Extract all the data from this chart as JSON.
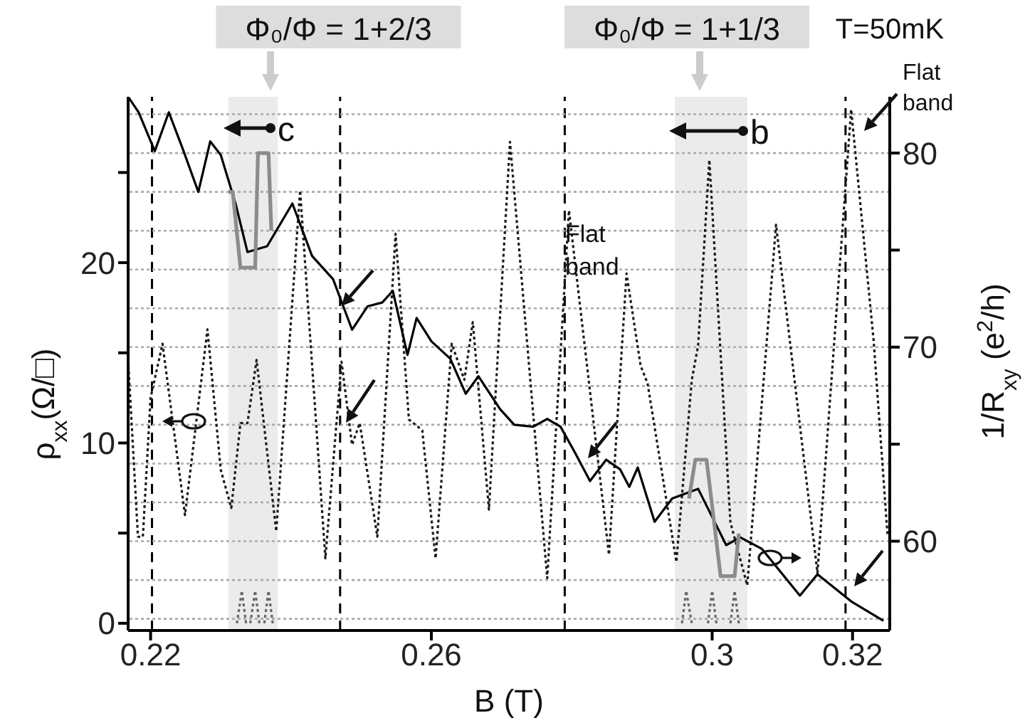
{
  "chart_data": {
    "type": "line",
    "xlabel": "B (T)",
    "ylabel": "ρ$_{xx}$(Ω/□)",
    "y2label": "1/R$_{xy}$ (e$^{2}$/h)",
    "xlim": [
      0.2168,
      0.3253
    ],
    "xticks": [
      0.22,
      0.26,
      0.3,
      0.32
    ],
    "ylim": [
      -0.4,
      29.2
    ],
    "yticks": [
      0,
      {
        "value": 5,
        "label": null
      },
      10,
      {
        "value": 15,
        "label": null
      },
      20,
      {
        "value": 25,
        "label": null
      }
    ],
    "y2lim": [
      55.4,
      82.9
    ],
    "y2ticks": [
      60,
      {
        "value": 65,
        "label": null
      },
      70,
      {
        "value": 75,
        "label": null
      },
      80
    ],
    "series": [
      {
        "type": "line",
        "axis": "y",
        "color": "#1a1a1a",
        "line_style": "dotted",
        "x": [
          0.2168,
          0.2182,
          0.2189,
          0.22,
          0.2217,
          0.2249,
          0.2281,
          0.23,
          0.2315,
          0.2328,
          0.2338,
          0.2351,
          0.2379,
          0.2413,
          0.2449,
          0.2472,
          0.2487,
          0.2498,
          0.2523,
          0.2549,
          0.2568,
          0.2587,
          0.2606,
          0.2629,
          0.2647,
          0.2659,
          0.2682,
          0.2712,
          0.2765,
          0.2796,
          0.2853,
          0.2878,
          0.2898,
          0.2908,
          0.2949,
          0.2971,
          0.298,
          0.2996,
          0.3026,
          0.305,
          0.3091,
          0.315,
          0.3198,
          0.323,
          0.325
        ],
        "values": [
          14.6,
          4.8,
          4.8,
          12.5,
          15.5,
          6.0,
          16.3,
          8.5,
          6.4,
          11.1,
          11.1,
          14.6,
          5.1,
          24.0,
          3.6,
          14.5,
          9.9,
          11.1,
          4.8,
          21.6,
          11.3,
          10.7,
          3.6,
          15.5,
          13.5,
          16.7,
          6.3,
          26.7,
          2.5,
          22.9,
          3.8,
          19.4,
          14.3,
          13.3,
          3.4,
          13.5,
          15.4,
          25.7,
          5.6,
          2.1,
          22.1,
          2.8,
          28.5,
          15.7,
          4.8
        ]
      },
      {
        "type": "line",
        "axis": "y2",
        "color": "#000000",
        "line_style": "solid",
        "x": [
          0.2168,
          0.2183,
          0.2206,
          0.2226,
          0.2247,
          0.2268,
          0.2285,
          0.23,
          0.2321,
          0.2338,
          0.2366,
          0.2402,
          0.243,
          0.246,
          0.2487,
          0.2509,
          0.253,
          0.2545,
          0.2566,
          0.2579,
          0.26,
          0.2627,
          0.2649,
          0.2667,
          0.2698,
          0.2718,
          0.2745,
          0.2765,
          0.2784,
          0.2804,
          0.2826,
          0.2849,
          0.2869,
          0.2882,
          0.2894,
          0.2918,
          0.2943,
          0.298,
          0.302,
          0.304,
          0.3071,
          0.3125,
          0.315,
          0.3198,
          0.3244
        ],
        "values": [
          82.9,
          82.1,
          80.1,
          82.1,
          80.1,
          78.0,
          80.6,
          79.9,
          77.4,
          74.9,
          75.2,
          77.4,
          74.7,
          73.5,
          70.9,
          72.1,
          72.3,
          72.9,
          69.6,
          71.5,
          70.3,
          69.4,
          67.6,
          68.5,
          66.8,
          66.0,
          65.9,
          66.3,
          65.9,
          64.6,
          63.1,
          64.2,
          63.7,
          62.8,
          63.8,
          61.0,
          62.2,
          62.7,
          59.8,
          60.2,
          59.6,
          57.2,
          58.3,
          56.9,
          55.9
        ]
      },
      {
        "type": "line",
        "axis": "y2",
        "color": "#8c8c8c",
        "line_style": "solid",
        "x": [
          0.2311,
          0.2317,
          0.2328,
          0.2349,
          0.2353,
          0.2368,
          0.2372
        ],
        "values": [
          78.0,
          78.0,
          74.1,
          74.1,
          80.0,
          80.0,
          76.0
        ]
      },
      {
        "type": "line",
        "axis": "y2",
        "color": "#8c8c8c",
        "line_style": "solid",
        "x": [
          0.2967,
          0.2976,
          0.2992,
          0.3012,
          0.3032,
          0.3038
        ],
        "values": [
          62.2,
          64.2,
          64.2,
          58.2,
          58.2,
          60.4
        ]
      },
      {
        "type": "line",
        "axis": "y",
        "color": "#666666",
        "line_style": "dotted",
        "x": [
          0.2323,
          0.233,
          0.2336,
          0.2339,
          0.2342,
          0.2349,
          0.2355,
          0.2358,
          0.2362,
          0.2368,
          0.2374,
          0.29,
          0.2957,
          0.2963,
          0.2971,
          0.2983,
          0.2994,
          0.3,
          0.3006,
          0.3016,
          0.3026,
          0.3032,
          0.3038
        ],
        "values": [
          0,
          1.8,
          0,
          null,
          0,
          1.8,
          0,
          null,
          0,
          1.8,
          0,
          null,
          0,
          1.8,
          0,
          null,
          0,
          1.8,
          0,
          null,
          0,
          1.8,
          0
        ]
      }
    ],
    "bands": [
      {
        "axis": "x",
        "from": 0.2311,
        "to": 0.2381,
        "label": "Φ₀/Φ = 1+2/3",
        "color": "#ebebeb"
      },
      {
        "axis": "x",
        "from": 0.2947,
        "to": 0.305,
        "label": "Φ₀/Φ = 1+1/3",
        "color": "#ebebeb"
      }
    ],
    "ref_lines": [
      {
        "axis": "x",
        "value": 0.2202,
        "color": "#000000",
        "line_style": "dashed"
      },
      {
        "axis": "x",
        "value": 0.247,
        "color": "#000000",
        "line_style": "dashed"
      },
      {
        "axis": "x",
        "value": 0.279,
        "color": "#000000",
        "line_style": "dashed"
      },
      {
        "axis": "x",
        "value": 0.319,
        "color": "#000000",
        "line_style": "dashed"
      },
      {
        "axis": "y2",
        "value": 56,
        "color": "#aaaaaa",
        "line_style": "dotted"
      },
      {
        "axis": "y2",
        "value": 58,
        "color": "#aaaaaa",
        "line_style": "dotted"
      },
      {
        "axis": "y2",
        "value": 60,
        "color": "#aaaaaa",
        "line_style": "dotted"
      },
      {
        "axis": "y2",
        "value": 62,
        "color": "#aaaaaa",
        "line_style": "dotted"
      },
      {
        "axis": "y2",
        "value": 64,
        "color": "#aaaaaa",
        "line_style": "dotted"
      },
      {
        "axis": "y2",
        "value": 66,
        "color": "#aaaaaa",
        "line_style": "dotted"
      },
      {
        "axis": "y2",
        "value": 68,
        "color": "#aaaaaa",
        "line_style": "dotted"
      },
      {
        "axis": "y2",
        "value": 70,
        "color": "#aaaaaa",
        "line_style": "dotted"
      },
      {
        "axis": "y2",
        "value": 72,
        "color": "#aaaaaa",
        "line_style": "dotted"
      },
      {
        "axis": "y2",
        "value": 74,
        "color": "#aaaaaa",
        "line_style": "dotted"
      },
      {
        "axis": "y2",
        "value": 76,
        "color": "#aaaaaa",
        "line_style": "dotted"
      },
      {
        "axis": "y2",
        "value": 78,
        "color": "#aaaaaa",
        "line_style": "dotted"
      },
      {
        "axis": "y2",
        "value": 80,
        "color": "#aaaaaa",
        "line_style": "dotted"
      },
      {
        "axis": "y2",
        "value": 82,
        "color": "#aaaaaa",
        "line_style": "dotted"
      }
    ],
    "annotations": [
      "T=50mK",
      "Flat band",
      "Flat band",
      "c",
      "b"
    ]
  }
}
